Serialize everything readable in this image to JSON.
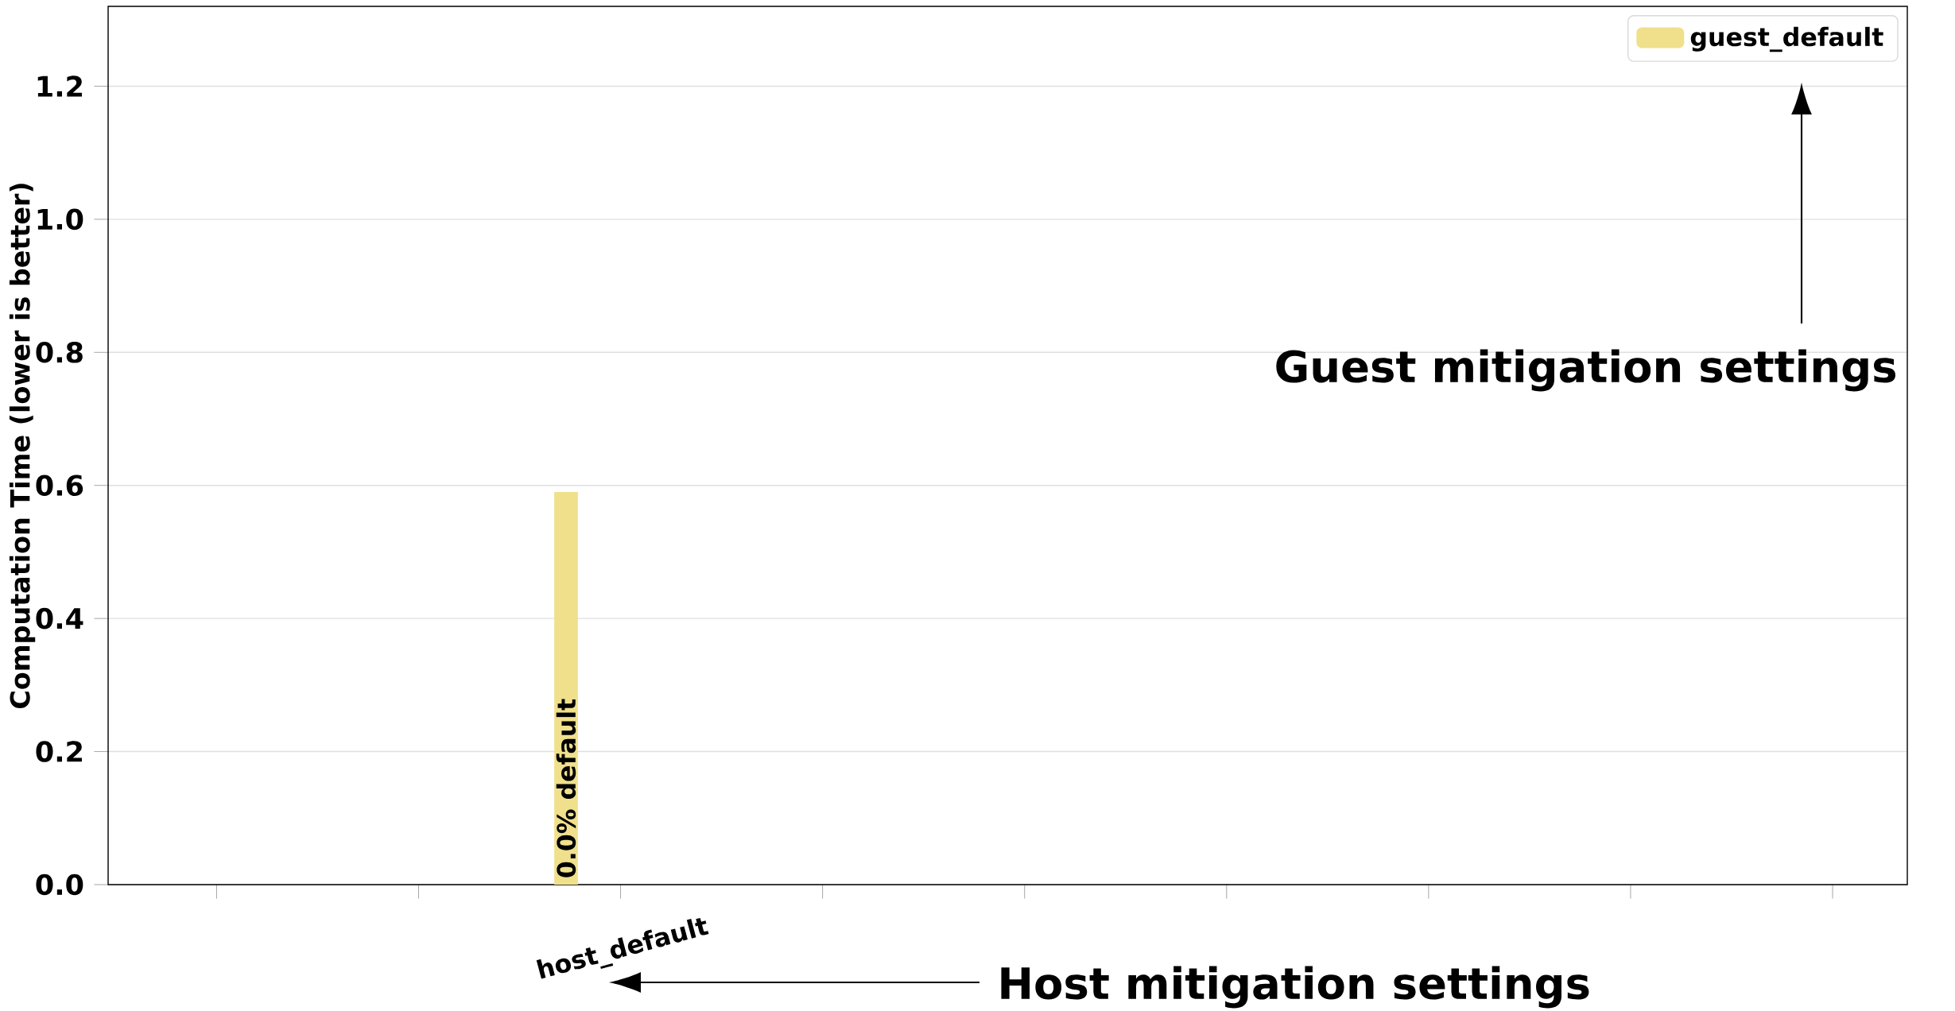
{
  "chart_data": {
    "type": "bar",
    "ylabel": "Computation Time (lower is better)",
    "categories": [
      null,
      null,
      "host_default",
      null,
      null,
      null,
      null,
      null,
      null
    ],
    "series": [
      {
        "name": "guest_default",
        "color": "#f0e08c",
        "values": [
          null,
          null,
          0.59,
          null,
          null,
          null,
          null,
          null,
          null
        ]
      }
    ],
    "ylim": [
      0,
      1.32
    ],
    "yticks": [
      {
        "value": 0,
        "label": "0.0"
      },
      {
        "value": 0.2,
        "label": "0.2"
      },
      {
        "value": 0.4,
        "label": "0.4"
      },
      {
        "value": 0.6,
        "label": "0.6"
      },
      {
        "value": 0.8,
        "label": "0.8"
      },
      {
        "value": 1.0,
        "label": "1.0"
      },
      {
        "value": 1.2,
        "label": "1.2"
      }
    ],
    "grid": "y",
    "legend": "top right",
    "annotations": [
      "Guest mitigation settings",
      "Host mitigation settings",
      "0.0% default"
    ]
  }
}
